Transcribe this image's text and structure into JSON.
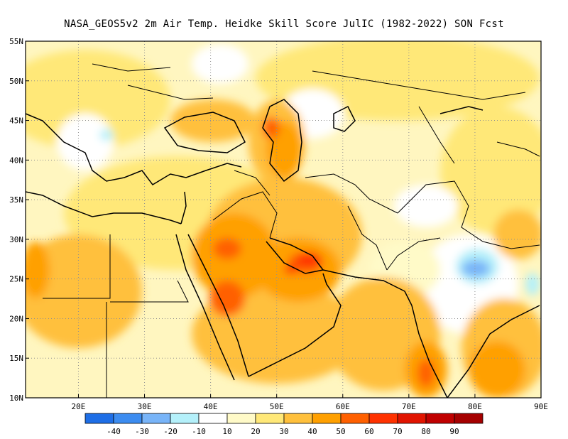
{
  "title": "NASA_GEOS5v2  2m Air Temp. Heidke Skill Score JulIC (1982-2022) SON Fcst",
  "map": {
    "lon_range": [
      12,
      90
    ],
    "lat_range": [
      10,
      55
    ],
    "x_ticks": [
      {
        "lon": 20,
        "label": "20E"
      },
      {
        "lon": 30,
        "label": "30E"
      },
      {
        "lon": 40,
        "label": "40E"
      },
      {
        "lon": 50,
        "label": "50E"
      },
      {
        "lon": 60,
        "label": "60E"
      },
      {
        "lon": 70,
        "label": "70E"
      },
      {
        "lon": 80,
        "label": "80E"
      },
      {
        "lon": 90,
        "label": "90E"
      }
    ],
    "y_ticks": [
      {
        "lat": 10,
        "label": "10N"
      },
      {
        "lat": 15,
        "label": "15N"
      },
      {
        "lat": 20,
        "label": "20N"
      },
      {
        "lat": 25,
        "label": "25N"
      },
      {
        "lat": 30,
        "label": "30N"
      },
      {
        "lat": 35,
        "label": "35N"
      },
      {
        "lat": 40,
        "label": "40N"
      },
      {
        "lat": 45,
        "label": "45N"
      },
      {
        "lat": 50,
        "label": "50N"
      },
      {
        "lat": 55,
        "label": "55N"
      }
    ]
  },
  "colorbar": {
    "colors": [
      "#1e6ee6",
      "#3c8cf0",
      "#78b4f8",
      "#b4f0fa",
      "#ffffff",
      "#fffac8",
      "#ffe878",
      "#ffc03c",
      "#ffa000",
      "#ff6000",
      "#ff3200",
      "#e11400",
      "#c00000",
      "#a50000"
    ],
    "labels": [
      "-40",
      "-30",
      "-20",
      "-10",
      "10",
      "20",
      "30",
      "40",
      "50",
      "60",
      "70",
      "80",
      "90"
    ]
  },
  "features": [
    {
      "type": "warm",
      "lon": 55.5,
      "lat": 26.5,
      "value": 70
    },
    {
      "type": "warm",
      "lon": 54,
      "lat": 27,
      "value": 60
    },
    {
      "type": "warm",
      "lon": 43,
      "lat": 22,
      "value": 60
    },
    {
      "type": "warm",
      "lon": 48,
      "lat": 42,
      "value": 50
    },
    {
      "type": "warm",
      "lon": 70,
      "lat": 15,
      "value": 50
    },
    {
      "type": "cool",
      "lon": 76,
      "lat": 25,
      "value": -20
    },
    {
      "type": "cool",
      "lon": 22,
      "lat": 44,
      "value": -10
    },
    {
      "type": "cool",
      "lon": 88,
      "lat": 25,
      "value": -10
    }
  ]
}
